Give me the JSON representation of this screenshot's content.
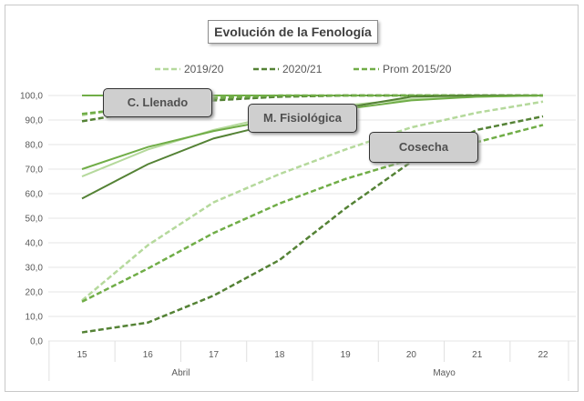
{
  "chart_data": {
    "type": "line",
    "title": "Evolución de la Fenología",
    "x": [
      "15",
      "16",
      "17",
      "18",
      "19",
      "20",
      "21",
      "22"
    ],
    "x_groups": [
      {
        "label": "Abril",
        "span": 4
      },
      {
        "label": "Mayo",
        "span": 4
      }
    ],
    "ylim": [
      0,
      100
    ],
    "yticks": [
      "0,0",
      "10,0",
      "20,0",
      "30,0",
      "40,0",
      "50,0",
      "60,0",
      "70,0",
      "80,0",
      "90,0",
      "100,0"
    ],
    "grid": true,
    "legend_position": "top",
    "legend": [
      {
        "name": "2019/20",
        "color": "#b5d99c"
      },
      {
        "name": "2020/21",
        "color": "#548235"
      },
      {
        "name": "Prom 2015/20",
        "color": "#70ad47"
      }
    ],
    "annotations": [
      "C. Llenado",
      "M. Fisiológica",
      "Cosecha"
    ],
    "series": [
      {
        "group": "top",
        "color": "#70ad47",
        "dash": false,
        "values": [
          100,
          100,
          100,
          100,
          100,
          100,
          100,
          100
        ]
      },
      {
        "group": "C. Llenado",
        "color": "#b5d99c",
        "dash": true,
        "values": [
          92,
          96,
          98.5,
          99.5,
          100,
          100,
          100,
          100
        ]
      },
      {
        "group": "C. Llenado",
        "color": "#548235",
        "dash": true,
        "values": [
          89.5,
          94,
          98,
          99.5,
          100,
          100,
          100,
          100
        ]
      },
      {
        "group": "C. Llenado",
        "color": "#70ad47",
        "dash": true,
        "values": [
          92.5,
          95.5,
          99,
          100,
          100,
          100,
          100,
          100
        ]
      },
      {
        "group": "M. Fisiológica",
        "color": "#b5d99c",
        "dash": false,
        "values": [
          67,
          78,
          86,
          92,
          96,
          98.5,
          99.5,
          100
        ]
      },
      {
        "group": "M. Fisiológica",
        "color": "#548235",
        "dash": false,
        "values": [
          58,
          72,
          82.5,
          89,
          95,
          99.5,
          100,
          100
        ]
      },
      {
        "group": "M. Fisiológica",
        "color": "#70ad47",
        "dash": false,
        "values": [
          70,
          79,
          85.5,
          90.5,
          94.5,
          98,
          99.5,
          100
        ]
      },
      {
        "group": "Cosecha",
        "color": "#b5d99c",
        "dash": true,
        "values": [
          16.5,
          39,
          56.5,
          68,
          78,
          87,
          93,
          97.5
        ]
      },
      {
        "group": "Cosecha",
        "color": "#548235",
        "dash": true,
        "values": [
          3.5,
          7.5,
          18.5,
          33,
          54,
          73,
          86,
          91.5
        ]
      },
      {
        "group": "Cosecha",
        "color": "#70ad47",
        "dash": true,
        "values": [
          16,
          29.5,
          44,
          56,
          66,
          74,
          81,
          88
        ]
      }
    ]
  }
}
